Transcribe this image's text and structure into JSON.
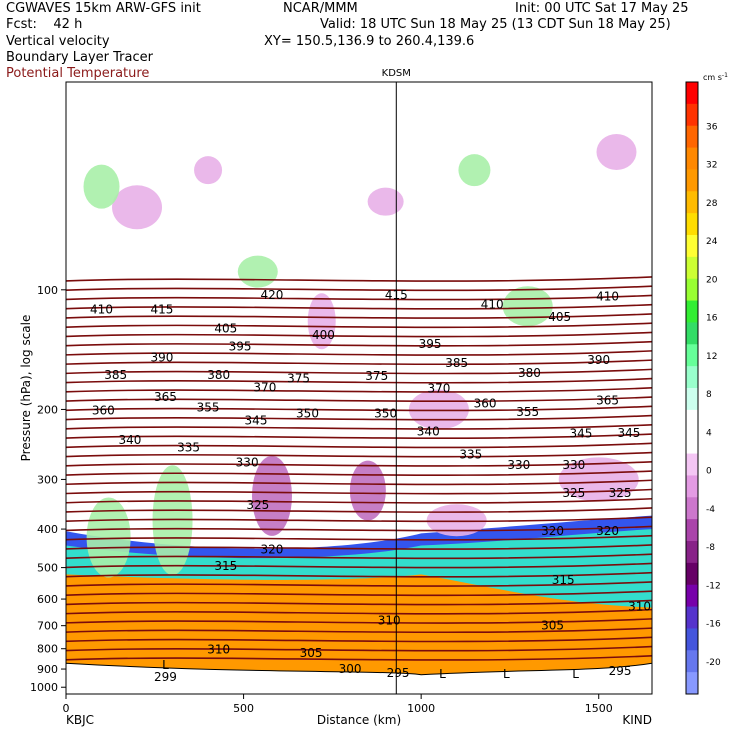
{
  "header": {
    "left_line1": "CGWAVES 15km ARW-GFS init",
    "left_line2": "Fcst:    42 h",
    "center_line1": "NCAR/MMM",
    "init_text": "Init: 00 UTC Sat 17 May 25",
    "valid_text": "Valid: 18 UTC Sun 18 May 25 (13 CDT Sun 18 May 25)",
    "xy_text": "XY= 150.5,136.9 to 260.4,139.6",
    "field1": "Vertical velocity",
    "field2": "Boundary Layer Tracer",
    "field3": "Potential Temperature"
  },
  "colors": {
    "theta": "#7a0c0c",
    "terrain": "#ffffff",
    "tracer_fill": "#ff9900",
    "green": "#a8f0a8",
    "purple": "#e8b0e8"
  },
  "chart_data": {
    "type": "heatmap",
    "title": "KDSM",
    "xlabel": "Distance (km)",
    "ylabel": "Pressure (hPa), log scale",
    "x_ticks": [
      0,
      500,
      1000,
      1500
    ],
    "xlim": [
      0,
      1650
    ],
    "y_ticks": [
      100,
      200,
      300,
      400,
      500,
      600,
      700,
      800,
      900,
      1000
    ],
    "ylim": [
      1040,
      30
    ],
    "marker_x_km": 930,
    "left_station": "KBJC",
    "right_station": "KIND",
    "colorbar": {
      "unit": "cm s",
      "unit_sup": "-1",
      "ticks": [
        36,
        32,
        28,
        24,
        20,
        16,
        12,
        8,
        4,
        0,
        -4,
        -8,
        -12,
        -16,
        -20
      ],
      "colors": [
        "#ff0000",
        "#ff3300",
        "#ff6600",
        "#ff8800",
        "#ff9900",
        "#ffbb00",
        "#ffdd00",
        "#ffff33",
        "#ccff33",
        "#99ff33",
        "#33ee33",
        "#33dd66",
        "#66ff99",
        "#99ffcc",
        "#ccffee",
        "#ffffff",
        "#ffffff",
        "#f4c6f4",
        "#e39be3",
        "#cc77cc",
        "#aa44aa",
        "#882288",
        "#660066",
        "#7700aa",
        "#5533cc",
        "#4455dd",
        "#6677ee",
        "#8899ff"
      ]
    },
    "theta_labels": [
      {
        "v": "410",
        "x": 100,
        "p": 112
      },
      {
        "v": "415",
        "x": 270,
        "p": 112
      },
      {
        "v": "420",
        "x": 580,
        "p": 103
      },
      {
        "v": "415",
        "x": 930,
        "p": 103
      },
      {
        "v": "410",
        "x": 1200,
        "p": 109
      },
      {
        "v": "410",
        "x": 1525,
        "p": 104
      },
      {
        "v": "405",
        "x": 450,
        "p": 125
      },
      {
        "v": "405",
        "x": 1390,
        "p": 117
      },
      {
        "v": "395",
        "x": 490,
        "p": 139
      },
      {
        "v": "400",
        "x": 725,
        "p": 130
      },
      {
        "v": "395",
        "x": 1025,
        "p": 137
      },
      {
        "v": "390",
        "x": 270,
        "p": 148
      },
      {
        "v": "390",
        "x": 1500,
        "p": 150
      },
      {
        "v": "385",
        "x": 140,
        "p": 164
      },
      {
        "v": "385",
        "x": 1100,
        "p": 153
      },
      {
        "v": "380",
        "x": 430,
        "p": 164
      },
      {
        "v": "380",
        "x": 1305,
        "p": 162
      },
      {
        "v": "375",
        "x": 655,
        "p": 167
      },
      {
        "v": "375",
        "x": 875,
        "p": 165
      },
      {
        "v": "370",
        "x": 560,
        "p": 176
      },
      {
        "v": "370",
        "x": 1050,
        "p": 177
      },
      {
        "v": "365",
        "x": 280,
        "p": 186
      },
      {
        "v": "365",
        "x": 1525,
        "p": 190
      },
      {
        "v": "360",
        "x": 105,
        "p": 201
      },
      {
        "v": "360",
        "x": 1180,
        "p": 193
      },
      {
        "v": "355",
        "x": 400,
        "p": 198
      },
      {
        "v": "355",
        "x": 1300,
        "p": 203
      },
      {
        "v": "350",
        "x": 680,
        "p": 205
      },
      {
        "v": "350",
        "x": 900,
        "p": 205
      },
      {
        "v": "345",
        "x": 535,
        "p": 213
      },
      {
        "v": "345",
        "x": 1450,
        "p": 230
      },
      {
        "v": "345",
        "x": 1585,
        "p": 229
      },
      {
        "v": "340",
        "x": 180,
        "p": 239
      },
      {
        "v": "340",
        "x": 1020,
        "p": 227
      },
      {
        "v": "335",
        "x": 345,
        "p": 249
      },
      {
        "v": "335",
        "x": 1140,
        "p": 260
      },
      {
        "v": "330",
        "x": 510,
        "p": 272
      },
      {
        "v": "330",
        "x": 1275,
        "p": 276
      },
      {
        "v": "330",
        "x": 1430,
        "p": 276
      },
      {
        "v": "325",
        "x": 540,
        "p": 348
      },
      {
        "v": "325",
        "x": 1430,
        "p": 325
      },
      {
        "v": "325",
        "x": 1560,
        "p": 325
      },
      {
        "v": "320",
        "x": 580,
        "p": 450
      },
      {
        "v": "320",
        "x": 1370,
        "p": 405
      },
      {
        "v": "320",
        "x": 1525,
        "p": 405
      },
      {
        "v": "315",
        "x": 450,
        "p": 495
      },
      {
        "v": "315",
        "x": 1400,
        "p": 538
      },
      {
        "v": "310",
        "x": 910,
        "p": 680
      },
      {
        "v": "310",
        "x": 430,
        "p": 803
      },
      {
        "v": "310",
        "x": 1615,
        "p": 627
      },
      {
        "v": "305",
        "x": 690,
        "p": 820
      },
      {
        "v": "305",
        "x": 1370,
        "p": 700
      },
      {
        "v": "300",
        "x": 800,
        "p": 900
      },
      {
        "v": "295",
        "x": 935,
        "p": 920
      },
      {
        "v": "295",
        "x": 1560,
        "p": 910
      },
      {
        "v": "299",
        "x": 280,
        "p": 942
      }
    ],
    "low_markers": [
      {
        "v": "L",
        "x": 280,
        "p": 880
      },
      {
        "v": "L",
        "x": 1060,
        "p": 925
      },
      {
        "v": "L",
        "x": 1240,
        "p": 925
      },
      {
        "v": "L",
        "x": 1435,
        "p": 925
      }
    ]
  }
}
